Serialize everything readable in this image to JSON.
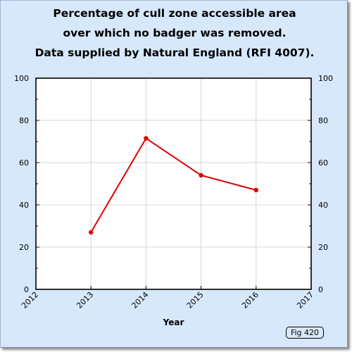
{
  "figure": {
    "badge": "Fig 420",
    "background_color": "#d8e8fb",
    "plot_background_color": "#ffffff"
  },
  "chart_data": {
    "type": "line",
    "title_lines": [
      "Percentage of cull zone accessible area",
      "over which no badger was removed.",
      "Data supplied by Natural England (RFI 4007)."
    ],
    "xlabel": "Year",
    "ylabel": "",
    "x_ticks": [
      "2012",
      "2013",
      "2014",
      "2015",
      "2016",
      "2017"
    ],
    "y_ticks": [
      "0",
      "20",
      "40",
      "60",
      "80",
      "100"
    ],
    "xlim": [
      2012,
      2017
    ],
    "ylim": [
      0,
      100
    ],
    "grid": true,
    "y_axis_labels_both_sides": true,
    "series": [
      {
        "color": "#dd0000",
        "x": [
          2013,
          2014,
          2015,
          2016
        ],
        "values": [
          27,
          71.5,
          54,
          47
        ]
      }
    ]
  }
}
